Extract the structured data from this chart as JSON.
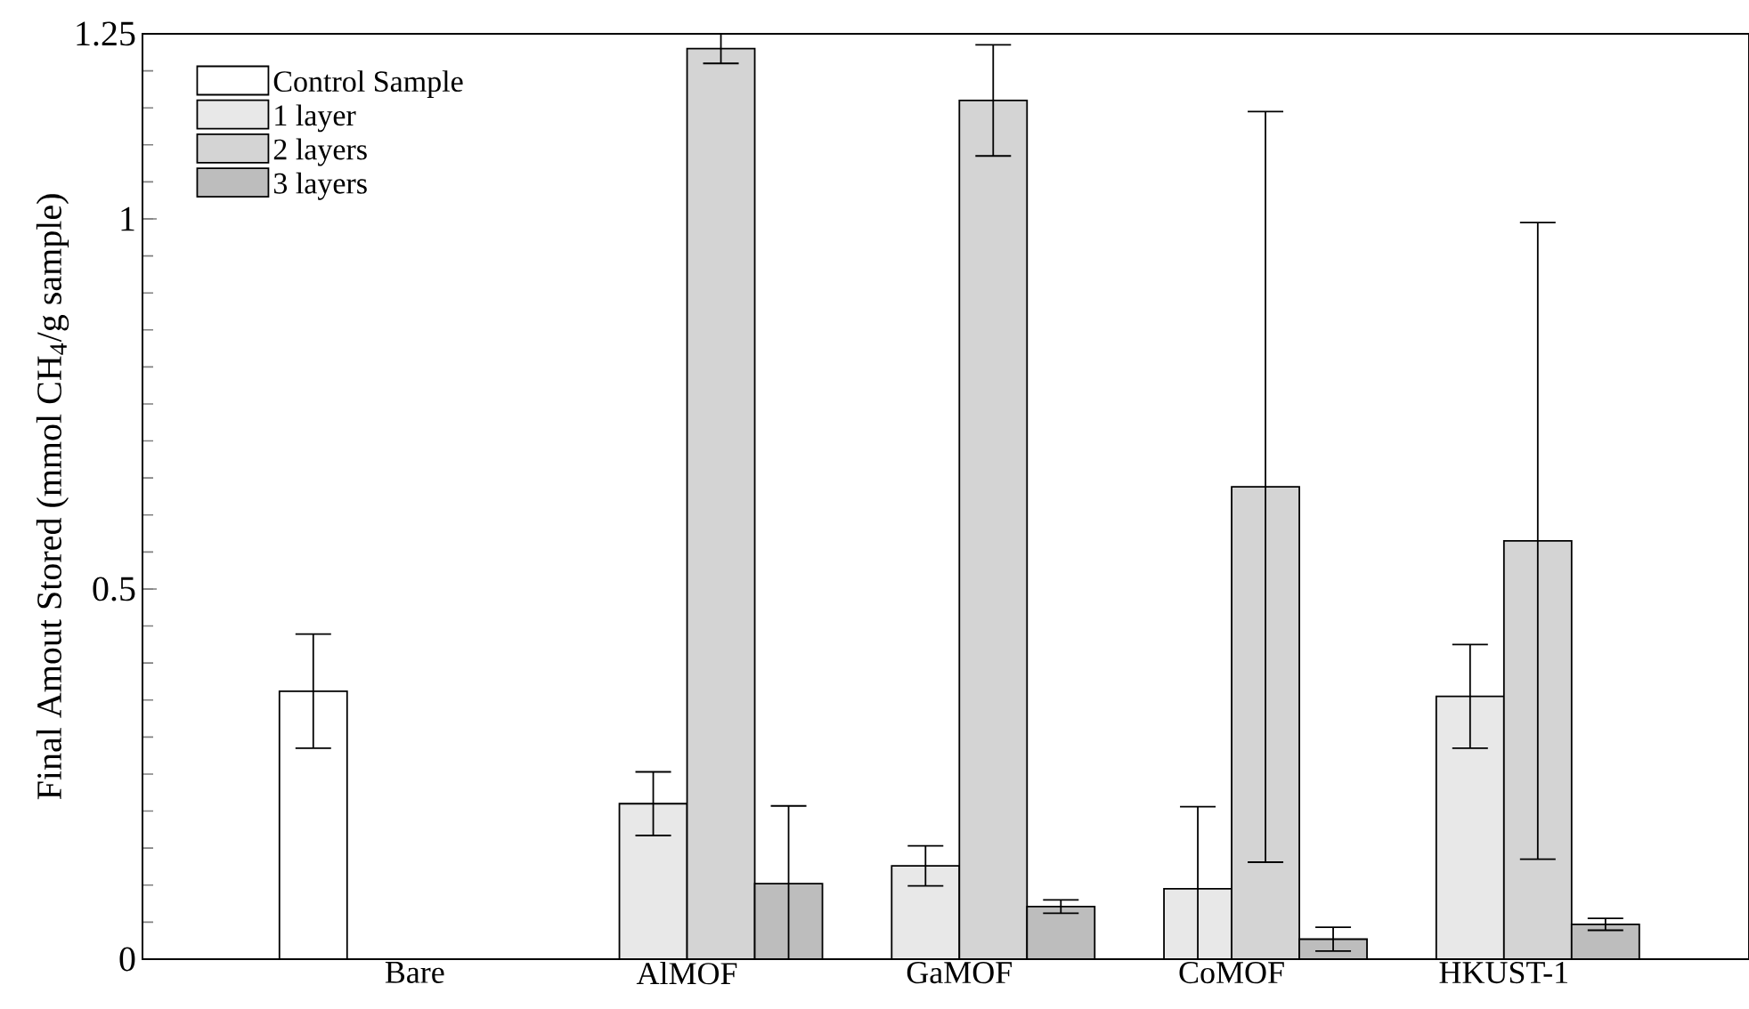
{
  "chart_data": {
    "type": "bar",
    "ylabel": "Final Amout Stored (mmol CH$_{4}$/g sample)",
    "categories": [
      "Bare",
      "AlMOF",
      "GaMOF",
      "CoMOF",
      "HKUST-1"
    ],
    "series": [
      {
        "name": "Control Sample",
        "color": "#ffffff",
        "values": [
          0.362,
          null,
          null,
          null,
          null
        ],
        "errors": [
          0.077,
          null,
          null,
          null,
          null
        ]
      },
      {
        "name": "1 layer",
        "color": "#e8e8e8",
        "values": [
          null,
          0.21,
          0.126,
          0.095,
          0.355
        ],
        "errors": [
          null,
          0.043,
          0.027,
          [
            0,
            0.206
          ],
          0.07
        ]
      },
      {
        "name": "2 layers",
        "color": "#d4d4d4",
        "values": [
          null,
          1.23,
          1.16,
          0.638,
          0.565
        ],
        "errors": [
          null,
          0.02,
          0.075,
          0.507,
          0.43
        ]
      },
      {
        "name": "3 layers",
        "color": "#bdbdbd",
        "values": [
          null,
          0.102,
          0.071,
          0.027,
          0.047
        ],
        "errors": [
          null,
          [
            0,
            0.207
          ],
          0.009,
          0.016,
          0.008
        ]
      }
    ],
    "ylim": [
      0,
      1.25
    ],
    "yticks": [
      0,
      0.5,
      1,
      1.25
    ],
    "grid": false,
    "legend": "top left"
  }
}
